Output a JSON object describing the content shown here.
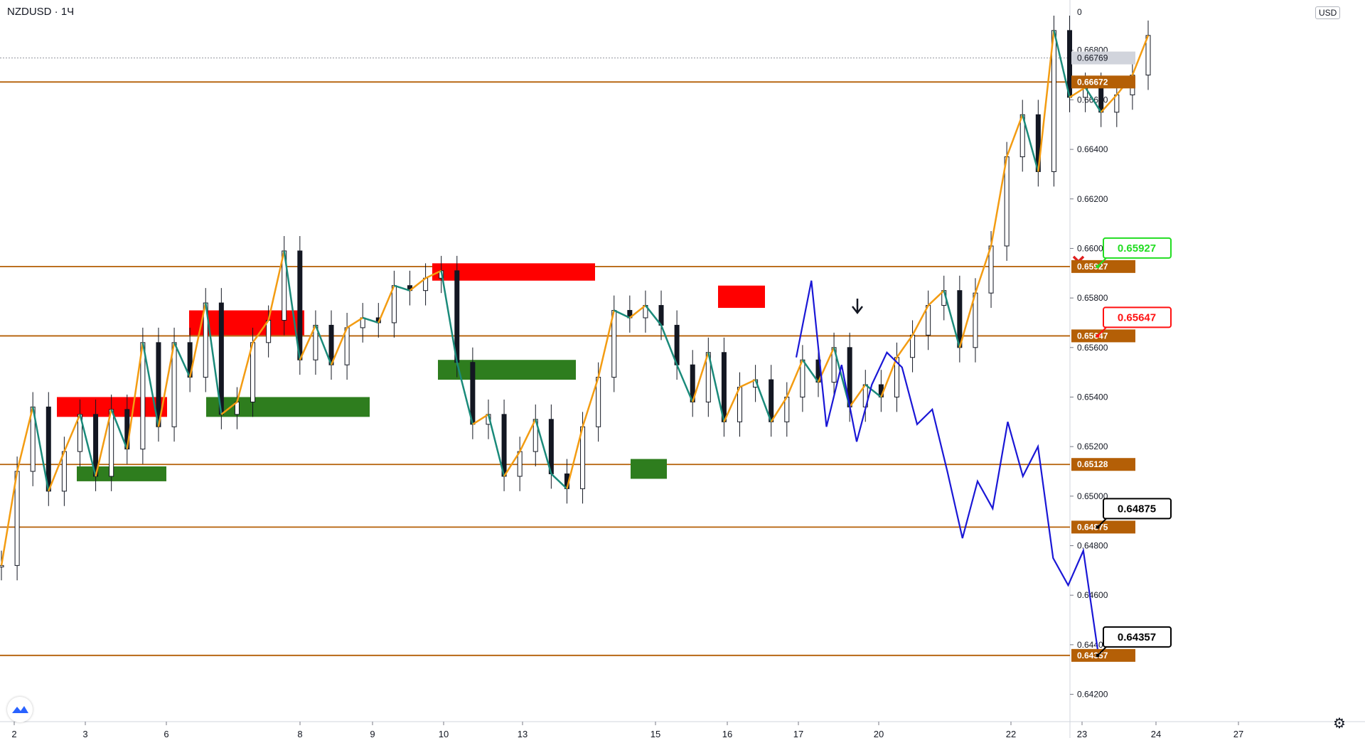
{
  "header": {
    "symbol": "NZDUSD · 1Ч",
    "currency": "USD"
  },
  "price_axis": {
    "ticks": [
      "0.66800",
      "0.66600",
      "0.66400",
      "0.66200",
      "0.66000",
      "0.65800",
      "0.65600",
      "0.65400",
      "0.65200",
      "0.65000",
      "0.64800",
      "0.64600",
      "0.64400",
      "0.64200"
    ],
    "current_price": "0.66769"
  },
  "time_axis": {
    "labels": [
      "2",
      "3",
      "6",
      "8",
      "9",
      "10",
      "13",
      "15",
      "16",
      "17",
      "20",
      "22",
      "23",
      "24",
      "27"
    ]
  },
  "levels": [
    {
      "price": "0.66672",
      "color": "#b45f06"
    },
    {
      "price": "0.65927",
      "color": "#b45f06"
    },
    {
      "price": "0.65647",
      "color": "#b45f06"
    },
    {
      "price": "0.65128",
      "color": "#b45f06"
    },
    {
      "price": "0.64875",
      "color": "#b45f06"
    },
    {
      "price": "0.64357",
      "color": "#b45f06"
    }
  ],
  "callouts": [
    {
      "text": "0.65927",
      "color": "#22dd22"
    },
    {
      "text": "0.65647",
      "color": "#ff1111"
    },
    {
      "text": "0.64875",
      "color": "#000000"
    },
    {
      "text": "0.64357",
      "color": "#000000"
    }
  ],
  "colors": {
    "bull_zone": "#2e7d1e",
    "bear_zone": "#ff0000",
    "projection": "#1a17d6",
    "zigzag_up": "#f39c12",
    "zigzag_down": "#1a8a7a"
  },
  "icons": {
    "logo": "tradingview-cloud-icon",
    "settings": "gear-icon",
    "cancel_mark": "red-x-icon",
    "signal": "down-arrow-icon"
  },
  "chart_data": {
    "type": "line",
    "title": "NZDUSD · 1Ч",
    "xlabel": "",
    "ylabel": "",
    "ylim": [
      0.6418,
      0.6696
    ],
    "x_tick_labels": [
      "2",
      "3",
      "6",
      "8",
      "9",
      "10",
      "13",
      "15",
      "16",
      "17",
      "20",
      "22",
      "23",
      "24",
      "27"
    ],
    "series": [
      {
        "values": [
          0.6472,
          0.651,
          0.6536,
          0.6502,
          0.6518,
          0.6533,
          0.6508,
          0.6535,
          0.6519,
          0.6562,
          0.6528,
          0.6562,
          0.6548,
          0.6578,
          0.6533,
          0.6538,
          0.6562,
          0.6571,
          0.6599,
          0.6555,
          0.6569,
          0.6553,
          0.6568,
          0.6572,
          0.657,
          0.6585,
          0.6583,
          0.6588,
          0.6591,
          0.6554,
          0.6529,
          0.6533,
          0.6508,
          0.6518,
          0.6531,
          0.6509,
          0.6503,
          0.6528,
          0.6548,
          0.6575,
          0.6572,
          0.6577,
          0.6569,
          0.6553,
          0.6538,
          0.6558,
          0.653,
          0.6544,
          0.6547,
          0.653,
          0.654,
          0.6555,
          0.6546,
          0.656,
          0.6536,
          0.6545,
          0.654,
          0.6556,
          0.6565,
          0.6577,
          0.6583,
          0.656,
          0.6582,
          0.6601,
          0.6637,
          0.6654,
          0.6631,
          0.6688,
          0.6661,
          0.6665,
          0.6655,
          0.6662,
          0.667,
          0.6686
        ]
      },
      {
        "values": [
          0.6556,
          0.6587,
          0.6528,
          0.6553,
          0.6522,
          0.6545,
          0.6558,
          0.6552,
          0.6529,
          0.6535,
          0.651,
          0.6483,
          0.6506,
          0.6495,
          0.653,
          0.6508,
          0.652,
          0.6475,
          0.6464,
          0.6478,
          0.6436
        ]
      }
    ],
    "zones": [
      {
        "kind": "supply",
        "from": 0.654,
        "to": 0.6532
      },
      {
        "kind": "demand",
        "from": 0.6512,
        "to": 0.6506
      },
      {
        "kind": "supply",
        "from": 0.6575,
        "to": 0.6565
      },
      {
        "kind": "demand",
        "from": 0.654,
        "to": 0.6532
      },
      {
        "kind": "supply",
        "from": 0.6594,
        "to": 0.6587
      },
      {
        "kind": "demand",
        "from": 0.6555,
        "to": 0.6547
      },
      {
        "kind": "demand",
        "from": 0.6515,
        "to": 0.6507
      },
      {
        "kind": "supply",
        "from": 0.6585,
        "to": 0.6576
      }
    ]
  }
}
